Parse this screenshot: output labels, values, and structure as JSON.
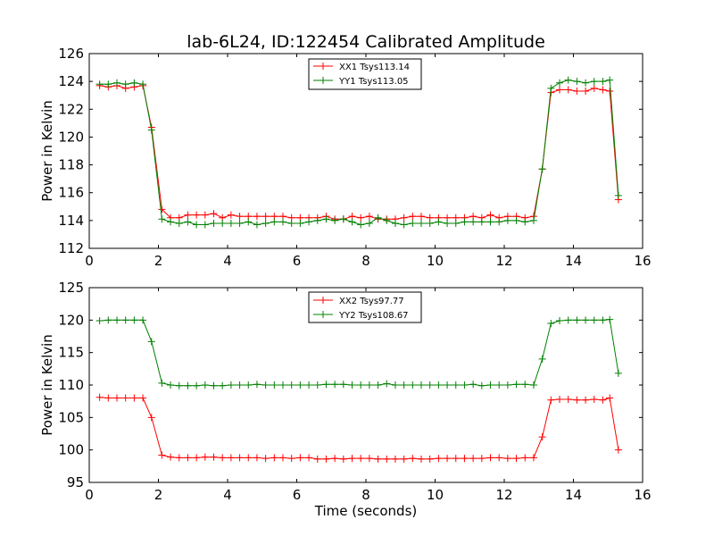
{
  "chart_data": [
    {
      "type": "line",
      "title": "lab-6L24, ID:122454 Calibrated Amplitude",
      "xlabel": "",
      "ylabel": "Power in Kelvin",
      "xlim": [
        0,
        16
      ],
      "ylim": [
        112,
        126
      ],
      "xticks": [
        0,
        2,
        4,
        6,
        8,
        10,
        12,
        14,
        16
      ],
      "yticks": [
        112,
        114,
        116,
        118,
        120,
        122,
        124,
        126
      ],
      "grid": false,
      "legend_position": "top-center",
      "x": [
        0.3,
        0.55,
        0.8,
        1.05,
        1.3,
        1.55,
        1.8,
        2.1,
        2.35,
        2.6,
        2.85,
        3.1,
        3.35,
        3.6,
        3.85,
        4.1,
        4.35,
        4.6,
        4.85,
        5.1,
        5.35,
        5.6,
        5.85,
        6.1,
        6.35,
        6.6,
        6.85,
        7.1,
        7.35,
        7.6,
        7.85,
        8.1,
        8.35,
        8.6,
        8.85,
        9.1,
        9.35,
        9.6,
        9.85,
        10.1,
        10.35,
        10.6,
        10.85,
        11.1,
        11.35,
        11.6,
        11.85,
        12.1,
        12.35,
        12.6,
        12.85,
        13.1,
        13.35,
        13.6,
        13.85,
        14.1,
        14.35,
        14.6,
        14.85,
        15.05,
        15.3
      ],
      "series": [
        {
          "name": "XX1 Tsys113.14",
          "color": "#ff0000",
          "values": [
            123.7,
            123.6,
            123.7,
            123.5,
            123.6,
            123.7,
            120.7,
            114.8,
            114.2,
            114.2,
            114.4,
            114.4,
            114.4,
            114.5,
            114.2,
            114.4,
            114.3,
            114.3,
            114.3,
            114.3,
            114.3,
            114.3,
            114.2,
            114.2,
            114.2,
            114.2,
            114.3,
            114.1,
            114.1,
            114.3,
            114.2,
            114.3,
            114.1,
            114.1,
            114.1,
            114.2,
            114.3,
            114.3,
            114.2,
            114.2,
            114.2,
            114.2,
            114.2,
            114.3,
            114.2,
            114.4,
            114.2,
            114.3,
            114.3,
            114.2,
            114.3,
            117.7,
            123.2,
            123.4,
            123.4,
            123.3,
            123.3,
            123.5,
            123.4,
            123.3,
            115.5
          ]
        },
        {
          "name": "YY1 Tsys113.05",
          "color": "#008000",
          "values": [
            123.8,
            123.8,
            123.9,
            123.8,
            123.9,
            123.8,
            120.5,
            114.1,
            113.9,
            113.8,
            113.9,
            113.7,
            113.7,
            113.8,
            113.8,
            113.8,
            113.8,
            113.9,
            113.7,
            113.8,
            113.9,
            113.9,
            113.8,
            113.8,
            113.9,
            114.0,
            114.1,
            114.0,
            114.1,
            113.9,
            113.7,
            113.8,
            114.2,
            114.0,
            113.8,
            113.7,
            113.8,
            113.8,
            113.8,
            113.9,
            113.8,
            113.8,
            113.9,
            113.9,
            113.9,
            113.9,
            113.9,
            114.0,
            114.0,
            113.9,
            114.0,
            117.7,
            123.5,
            123.9,
            124.1,
            124.0,
            123.9,
            124.0,
            124.0,
            124.1,
            115.8
          ]
        }
      ]
    },
    {
      "type": "line",
      "title": "",
      "xlabel": "Time (seconds)",
      "ylabel": "Power in Kelvin",
      "xlim": [
        0,
        16
      ],
      "ylim": [
        95,
        125
      ],
      "xticks": [
        0,
        2,
        4,
        6,
        8,
        10,
        12,
        14,
        16
      ],
      "yticks": [
        95,
        100,
        105,
        110,
        115,
        120,
        125
      ],
      "grid": false,
      "legend_position": "top-center",
      "x": [
        0.3,
        0.55,
        0.8,
        1.05,
        1.3,
        1.55,
        1.8,
        2.1,
        2.35,
        2.6,
        2.85,
        3.1,
        3.35,
        3.6,
        3.85,
        4.1,
        4.35,
        4.6,
        4.85,
        5.1,
        5.35,
        5.6,
        5.85,
        6.1,
        6.35,
        6.6,
        6.85,
        7.1,
        7.35,
        7.6,
        7.85,
        8.1,
        8.35,
        8.6,
        8.85,
        9.1,
        9.35,
        9.6,
        9.85,
        10.1,
        10.35,
        10.6,
        10.85,
        11.1,
        11.35,
        11.6,
        11.85,
        12.1,
        12.35,
        12.6,
        12.85,
        13.1,
        13.35,
        13.6,
        13.85,
        14.1,
        14.35,
        14.6,
        14.85,
        15.05,
        15.3
      ],
      "series": [
        {
          "name": "XX2 Tsys97.77",
          "color": "#ff0000",
          "values": [
            108.1,
            108.0,
            108.0,
            108.0,
            108.0,
            108.0,
            105.0,
            99.2,
            98.9,
            98.8,
            98.8,
            98.8,
            98.9,
            98.9,
            98.8,
            98.8,
            98.8,
            98.8,
            98.8,
            98.7,
            98.8,
            98.8,
            98.7,
            98.8,
            98.8,
            98.6,
            98.6,
            98.7,
            98.6,
            98.7,
            98.7,
            98.7,
            98.6,
            98.6,
            98.6,
            98.6,
            98.7,
            98.6,
            98.6,
            98.7,
            98.7,
            98.7,
            98.7,
            98.7,
            98.7,
            98.8,
            98.8,
            98.7,
            98.7,
            98.8,
            98.8,
            102.0,
            107.7,
            107.8,
            107.8,
            107.7,
            107.7,
            107.8,
            107.7,
            108.0,
            100.0
          ]
        },
        {
          "name": "YY2 Tsys108.67",
          "color": "#008000",
          "values": [
            119.9,
            120.0,
            120.0,
            120.0,
            120.0,
            120.0,
            116.7,
            110.3,
            110.0,
            109.9,
            109.9,
            109.9,
            110.0,
            109.9,
            109.9,
            110.0,
            110.0,
            110.0,
            110.1,
            110.0,
            110.0,
            110.0,
            110.0,
            110.0,
            110.0,
            110.0,
            110.1,
            110.1,
            110.1,
            110.0,
            110.0,
            110.0,
            110.0,
            110.2,
            110.0,
            110.0,
            110.0,
            110.0,
            110.0,
            110.0,
            110.0,
            110.0,
            110.0,
            110.1,
            109.9,
            110.0,
            110.0,
            110.0,
            110.1,
            110.1,
            110.0,
            114.0,
            119.5,
            119.9,
            120.0,
            120.0,
            120.0,
            120.0,
            120.0,
            120.1,
            111.8
          ]
        }
      ]
    }
  ]
}
